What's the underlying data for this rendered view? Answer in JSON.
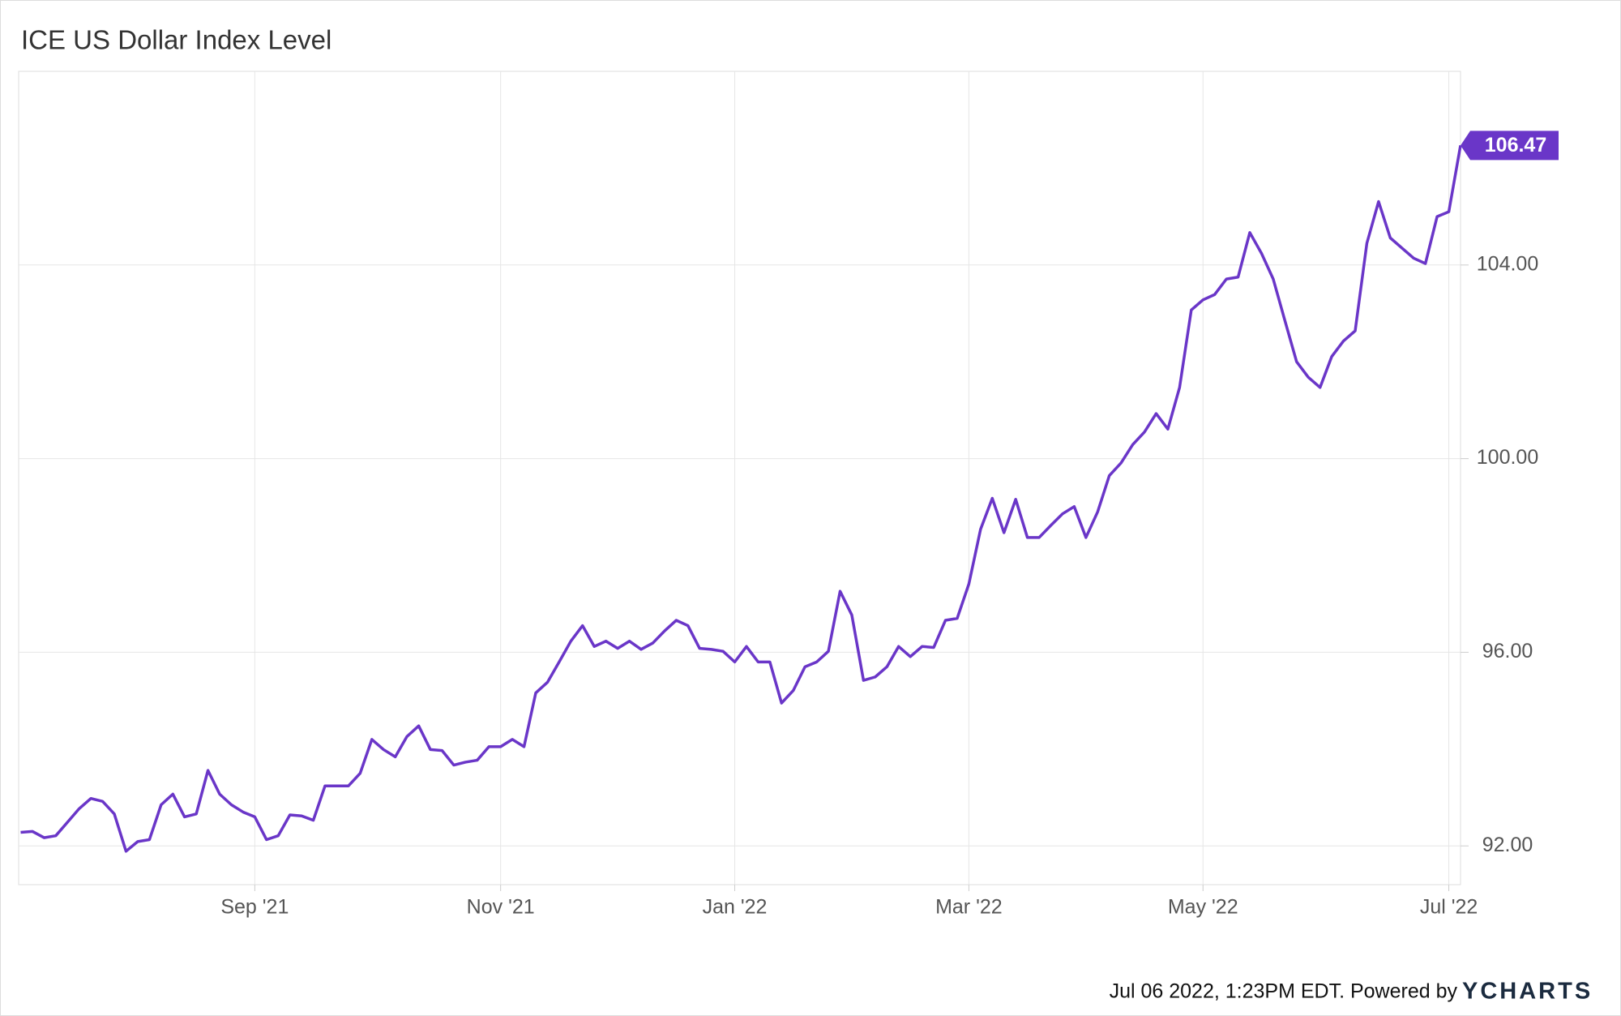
{
  "chart_data": {
    "type": "line",
    "title": "ICE US Dollar Index Level",
    "categories": [
      null,
      null,
      null,
      null,
      null,
      null,
      null,
      null,
      null,
      null,
      null,
      null,
      null,
      null,
      null,
      null,
      null,
      null,
      null,
      null,
      "Sep '21",
      null,
      null,
      null,
      null,
      null,
      null,
      null,
      null,
      null,
      null,
      null,
      null,
      null,
      null,
      null,
      null,
      null,
      null,
      null,
      null,
      "Nov '21",
      null,
      null,
      null,
      null,
      null,
      null,
      null,
      null,
      null,
      null,
      null,
      null,
      null,
      null,
      null,
      null,
      null,
      null,
      null,
      "Jan '22",
      null,
      null,
      null,
      null,
      null,
      null,
      null,
      null,
      null,
      null,
      null,
      null,
      null,
      null,
      null,
      null,
      null,
      null,
      null,
      "Mar '22",
      null,
      null,
      null,
      null,
      null,
      null,
      null,
      null,
      null,
      null,
      null,
      null,
      null,
      null,
      null,
      null,
      null,
      null,
      null,
      "May '22",
      null,
      null,
      null,
      null,
      null,
      null,
      null,
      null,
      null,
      null,
      null,
      null,
      null,
      null,
      null,
      null,
      null,
      null,
      null,
      null,
      "Jul '22",
      null
    ],
    "values": [
      92.28,
      92.3,
      92.17,
      92.21,
      92.49,
      92.77,
      92.98,
      92.92,
      92.66,
      91.89,
      92.09,
      92.13,
      92.85,
      93.07,
      92.6,
      92.66,
      93.56,
      93.07,
      92.85,
      92.7,
      92.6,
      92.13,
      92.21,
      92.64,
      92.62,
      92.53,
      93.24,
      93.24,
      93.24,
      93.5,
      94.2,
      93.99,
      93.84,
      94.26,
      94.48,
      93.99,
      93.97,
      93.67,
      93.73,
      93.77,
      94.05,
      94.05,
      94.2,
      94.05,
      95.16,
      95.38,
      95.8,
      96.23,
      96.55,
      96.12,
      96.23,
      96.08,
      96.23,
      96.06,
      96.19,
      96.44,
      96.66,
      96.55,
      96.08,
      96.06,
      96.02,
      95.8,
      96.12,
      95.8,
      95.8,
      94.95,
      95.21,
      95.7,
      95.8,
      96.02,
      97.26,
      96.77,
      95.42,
      95.49,
      95.7,
      96.12,
      95.91,
      96.12,
      96.1,
      96.66,
      96.7,
      97.41,
      98.54,
      99.18,
      98.47,
      99.16,
      98.37,
      98.37,
      98.62,
      98.86,
      99.01,
      98.37,
      98.9,
      99.65,
      99.91,
      100.29,
      100.55,
      100.93,
      100.61,
      101.47,
      103.07,
      103.28,
      103.39,
      103.71,
      103.75,
      104.67,
      104.24,
      103.71,
      102.85,
      102.0,
      101.68,
      101.47,
      102.11,
      102.43,
      102.64,
      104.45,
      105.31,
      104.56,
      104.35,
      104.14,
      104.03,
      105.0,
      105.1,
      106.47
    ],
    "color": "#6a36c8",
    "ylim": [
      91.2,
      108
    ],
    "yticks": [
      {
        "value": 92,
        "label": "92.00"
      },
      {
        "value": 96,
        "label": "96.00"
      },
      {
        "value": 100,
        "label": "100.00"
      },
      {
        "value": 104,
        "label": "104.00"
      }
    ],
    "grid": true
  },
  "footer": {
    "timestamp": "Jul 06 2022, 1:23PM EDT. Powered by",
    "brand": "YCHARTS"
  }
}
